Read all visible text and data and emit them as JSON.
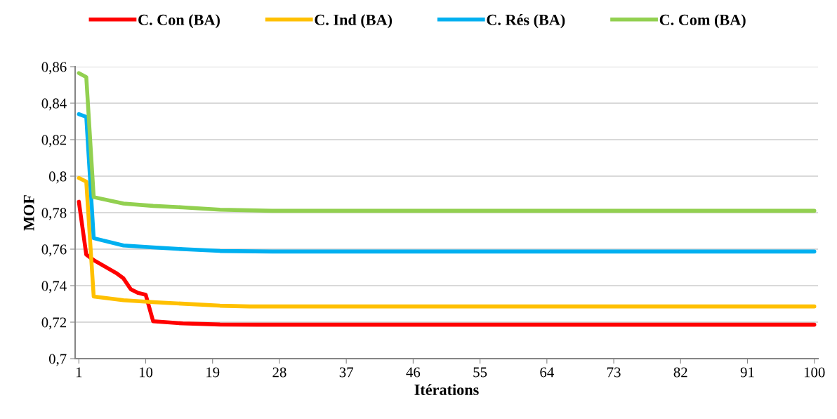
{
  "chart_data": {
    "type": "line",
    "xlabel": "Itérations",
    "ylabel": "MOF",
    "xlim": [
      0.5,
      100.5
    ],
    "xticks": [
      1,
      10,
      19,
      28,
      37,
      46,
      55,
      64,
      73,
      82,
      91,
      100
    ],
    "ylim": [
      0.7,
      0.86
    ],
    "yticks": [
      {
        "value": 0.7,
        "label": "0,7"
      },
      {
        "value": 0.72,
        "label": "0,72"
      },
      {
        "value": 0.74,
        "label": "0,74"
      },
      {
        "value": 0.76,
        "label": "0,76"
      },
      {
        "value": 0.78,
        "label": "0,78"
      },
      {
        "value": 0.8,
        "label": "0,8"
      },
      {
        "value": 0.82,
        "label": "0,82"
      },
      {
        "value": 0.84,
        "label": "0,84"
      },
      {
        "value": 0.86,
        "label": "0,86"
      }
    ],
    "grid": "y",
    "legend": "top",
    "marker": "none",
    "line_style": "solid",
    "series": [
      {
        "name": "C. Con (BA)",
        "color": "#ff0000",
        "x": [
          1,
          2,
          3,
          6,
          7,
          8,
          9,
          10,
          11,
          15,
          20,
          25,
          100
        ],
        "values": [
          0.786,
          0.757,
          0.754,
          0.747,
          0.744,
          0.738,
          0.736,
          0.735,
          0.7205,
          0.7193,
          0.7187,
          0.7186,
          0.7186
        ]
      },
      {
        "name": "C. Ind (BA)",
        "color": "#ffc000",
        "x": [
          1,
          2,
          3,
          7,
          11,
          20,
          24,
          100
        ],
        "values": [
          0.799,
          0.797,
          0.734,
          0.732,
          0.731,
          0.729,
          0.7286,
          0.7286
        ]
      },
      {
        "name": "C. Rés (BA)",
        "color": "#00b0f0",
        "x": [
          1,
          2,
          3,
          7,
          11,
          15,
          20,
          27,
          100
        ],
        "values": [
          0.834,
          0.8325,
          0.766,
          0.762,
          0.761,
          0.76,
          0.759,
          0.7587,
          0.7587
        ]
      },
      {
        "name": "C. Com (BA)",
        "color": "#92d050",
        "x": [
          1,
          2,
          3,
          7,
          11,
          15,
          20,
          27,
          100
        ],
        "values": [
          0.8565,
          0.8543,
          0.7885,
          0.785,
          0.7837,
          0.7829,
          0.7816,
          0.781,
          0.781
        ]
      }
    ]
  }
}
